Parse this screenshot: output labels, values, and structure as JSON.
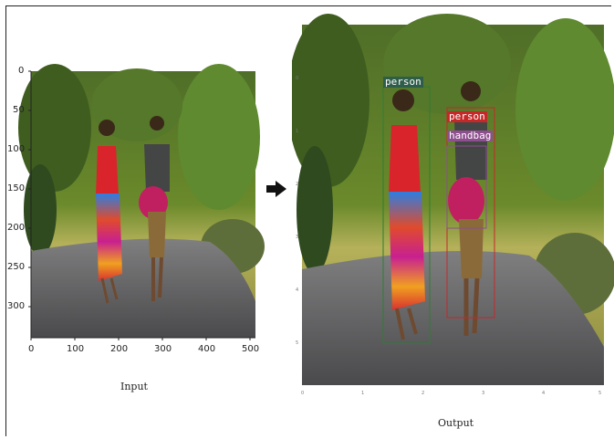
{
  "input_panel": {
    "caption": "Input",
    "y_ticks": [
      "0",
      "50",
      "100",
      "150",
      "200",
      "250",
      "300"
    ],
    "x_ticks": [
      "0",
      "100",
      "200",
      "300",
      "400",
      "500"
    ]
  },
  "arrow": {
    "icon": "right-arrow-icon"
  },
  "output_panel": {
    "caption": "Output",
    "detections": [
      {
        "label": "person",
        "color": "#2e7d32",
        "label_bg": "#2e5d4a"
      },
      {
        "label": "person",
        "color": "#c62828",
        "label_bg": "#c62828"
      },
      {
        "label": "handbag",
        "color": "#8e4f8e",
        "label_bg": "#8e4f8e"
      }
    ]
  }
}
